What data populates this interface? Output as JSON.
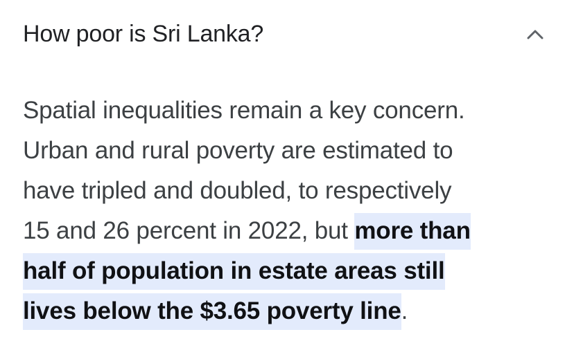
{
  "faq": {
    "question": "How poor is Sri Lanka?",
    "expanded_icon": "chevron-up-icon",
    "answer": {
      "line1": "Spatial inequalities remain a key concern.",
      "line2": "Urban and rural poverty are estimated to",
      "line3": "have tripled and doubled, to respectively",
      "line4_plain": "15 and 26 percent in 2022, but ",
      "line4_highlight": "more than",
      "line5_highlight": "half of population in estate areas still",
      "line6_highlight": "lives below the $3.65 poverty line",
      "line6_tail": "."
    },
    "highlight_color": "#e3ebfc"
  }
}
